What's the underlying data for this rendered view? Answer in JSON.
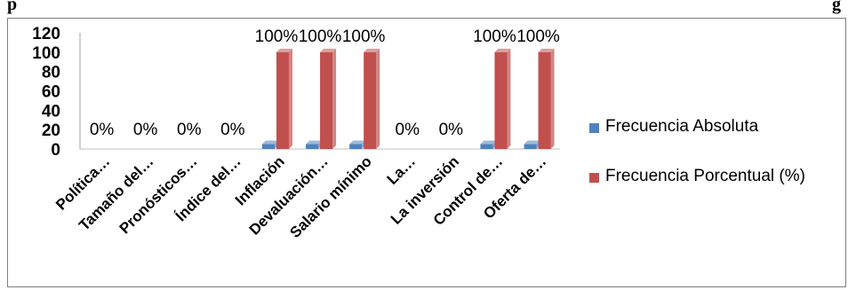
{
  "header_fragments": {
    "left": "p",
    "right": "g"
  },
  "chart_data": {
    "type": "bar",
    "title": "",
    "xlabel": "",
    "ylabel": "",
    "ylim": [
      0,
      120
    ],
    "yticks": [
      0,
      20,
      40,
      60,
      80,
      100,
      120
    ],
    "grid": false,
    "legend_position": "right",
    "categories": [
      "Política…",
      "Tamaño del…",
      "Pronósticos…",
      "Índice del…",
      "Inflación",
      "Devaluación…",
      "Salario mínimo",
      "La…",
      "La inversión",
      "Control de…",
      "Oferta de…"
    ],
    "series": [
      {
        "name": "Frecuencia Absoluta",
        "color": "#4f81bd",
        "values": [
          0,
          0,
          0,
          0,
          5,
          5,
          5,
          0,
          0,
          5,
          5
        ]
      },
      {
        "name": "Frecuencia Porcentual (%)",
        "color": "#c0504d",
        "values": [
          0,
          0,
          0,
          0,
          100,
          100,
          100,
          0,
          0,
          100,
          100
        ]
      }
    ],
    "data_labels": [
      "0%",
      "0%",
      "0%",
      "0%",
      "100%",
      "100%",
      "100%",
      "0%",
      "0%",
      "100%",
      "100%"
    ]
  }
}
